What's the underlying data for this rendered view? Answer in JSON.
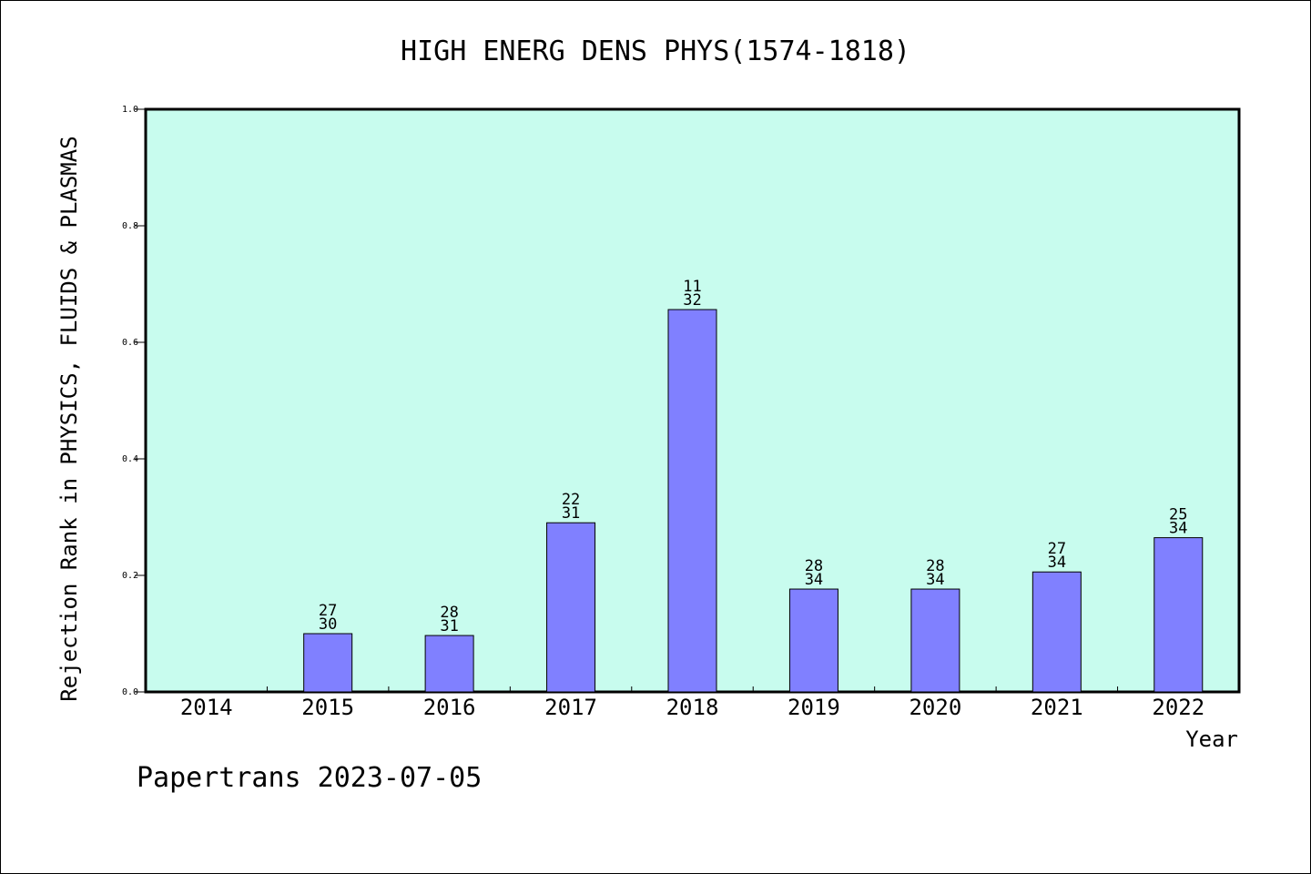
{
  "chart_data": {
    "type": "bar",
    "title": "HIGH ENERG DENS PHYS(1574-1818)",
    "xlabel": "Year",
    "ylabel": "Rejection Rank in PHYSICS, FLUIDS & PLASMAS",
    "footer": "Papertrans 2023-07-05",
    "ylim": [
      0,
      1.0
    ],
    "yticks": [
      "0.0",
      "0.2",
      "0.4",
      "0.6",
      "0.8",
      "1.0"
    ],
    "categories": [
      "2014",
      "2015",
      "2016",
      "2017",
      "2018",
      "2019",
      "2020",
      "2021",
      "2022"
    ],
    "values": [
      null,
      0.1,
      0.0968,
      0.2903,
      0.6562,
      0.1765,
      0.1765,
      0.2059,
      0.2647
    ],
    "labels_top": [
      null,
      "27",
      "28",
      "22",
      "11",
      "28",
      "28",
      "27",
      "25"
    ],
    "labels_bottom": [
      null,
      "30",
      "31",
      "31",
      "32",
      "34",
      "34",
      "34",
      "34"
    ],
    "colors": {
      "plot_background": "#c8fcee",
      "bar_fill": "#8080ff",
      "bar_stroke": "#000000"
    },
    "grid": false
  }
}
